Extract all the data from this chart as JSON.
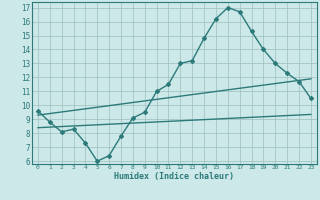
{
  "xlabel": "Humidex (Indice chaleur)",
  "bg_color": "#cce8e8",
  "line_color": "#2d7a7a",
  "grid_color": "#9dbfbf",
  "xlim": [
    -0.5,
    23.5
  ],
  "ylim": [
    5.8,
    17.4
  ],
  "xticks": [
    0,
    1,
    2,
    3,
    4,
    5,
    6,
    7,
    8,
    9,
    10,
    11,
    12,
    13,
    14,
    15,
    16,
    17,
    18,
    19,
    20,
    21,
    22,
    23
  ],
  "yticks": [
    6,
    7,
    8,
    9,
    10,
    11,
    12,
    13,
    14,
    15,
    16,
    17
  ],
  "line1_x": [
    0,
    1,
    2,
    3,
    4,
    5,
    6,
    7,
    8,
    9,
    10,
    11,
    12,
    13,
    14,
    15,
    16,
    17,
    18,
    19,
    20,
    21,
    22,
    23
  ],
  "line1_y": [
    9.6,
    8.8,
    8.1,
    8.3,
    7.3,
    6.0,
    6.4,
    7.8,
    9.1,
    9.5,
    11.0,
    11.5,
    13.0,
    13.2,
    14.8,
    16.2,
    17.0,
    16.7,
    15.3,
    14.0,
    13.0,
    12.3,
    11.7,
    10.5
  ],
  "line2_x": [
    0,
    23
  ],
  "line2_y": [
    9.3,
    11.9
  ],
  "line3_x": [
    0,
    23
  ],
  "line3_y": [
    8.4,
    9.35
  ],
  "marker": "D",
  "marker_size": 2.0,
  "linewidth": 1.0
}
